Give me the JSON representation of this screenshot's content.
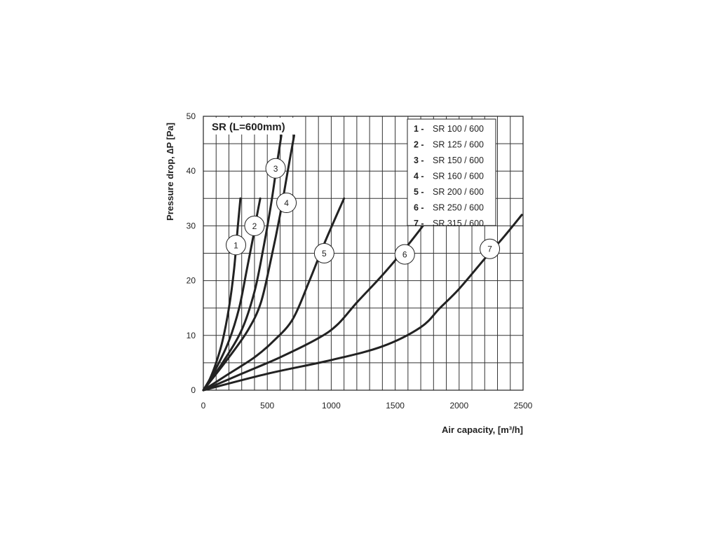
{
  "chart_data": {
    "type": "line",
    "title": "SR (L=600mm)",
    "xlabel": "Air capacity, [m³/h]",
    "ylabel": "Pressure drop, ∆P [Pa]",
    "xlim": [
      0,
      2500
    ],
    "ylim": [
      0,
      50
    ],
    "x_ticks": [
      "0",
      "500",
      "1000",
      "1500",
      "2000",
      "2500"
    ],
    "y_ticks": [
      "0",
      "10",
      "20",
      "30",
      "40",
      "50"
    ],
    "grid": true,
    "legend_position": "top-right",
    "legend": [
      {
        "num": "1 -",
        "text": "SR 100 / 600"
      },
      {
        "num": "2 -",
        "text": "SR 125 / 600"
      },
      {
        "num": "3 -",
        "text": "SR 150 / 600"
      },
      {
        "num": "4 -",
        "text": "SR 160 / 600"
      },
      {
        "num": "5 -",
        "text": "SR 200 / 600"
      },
      {
        "num": "6 -",
        "text": "SR 250 / 600"
      },
      {
        "num": "7 -",
        "text": "SR 315 / 600"
      }
    ],
    "series": [
      {
        "label": "1",
        "label_at": [
          255,
          26.5
        ],
        "points": [
          [
            0,
            0
          ],
          [
            50,
            2
          ],
          [
            100,
            5
          ],
          [
            150,
            9
          ],
          [
            200,
            15
          ],
          [
            240,
            22
          ],
          [
            270,
            30
          ],
          [
            290,
            35
          ]
        ]
      },
      {
        "label": "2",
        "label_at": [
          400,
          30
        ],
        "points": [
          [
            0,
            0
          ],
          [
            100,
            4
          ],
          [
            200,
            9
          ],
          [
            280,
            15
          ],
          [
            340,
            22
          ],
          [
            390,
            28
          ],
          [
            420,
            32
          ],
          [
            445,
            35
          ]
        ]
      },
      {
        "label": "3",
        "label_at": [
          565,
          40.5
        ],
        "points": [
          [
            0,
            0
          ],
          [
            150,
            5
          ],
          [
            300,
            11
          ],
          [
            400,
            18
          ],
          [
            470,
            26
          ],
          [
            530,
            34
          ],
          [
            580,
            42
          ],
          [
            610,
            46.5
          ]
        ]
      },
      {
        "label": "4",
        "label_at": [
          650,
          34.2
        ],
        "points": [
          [
            0,
            0
          ],
          [
            200,
            6
          ],
          [
            350,
            11
          ],
          [
            450,
            16
          ],
          [
            530,
            24
          ],
          [
            600,
            32
          ],
          [
            660,
            40
          ],
          [
            710,
            46.5
          ]
        ]
      },
      {
        "label": "5",
        "label_at": [
          945,
          25
        ],
        "points": [
          [
            0,
            0
          ],
          [
            200,
            3
          ],
          [
            400,
            6
          ],
          [
            550,
            9
          ],
          [
            700,
            13
          ],
          [
            830,
            20
          ],
          [
            950,
            27
          ],
          [
            1100,
            35
          ]
        ]
      },
      {
        "label": "6",
        "label_at": [
          1575,
          24.8
        ],
        "points": [
          [
            0,
            0
          ],
          [
            300,
            3
          ],
          [
            600,
            6
          ],
          [
            900,
            9.5
          ],
          [
            1050,
            12
          ],
          [
            1200,
            16
          ],
          [
            1400,
            21
          ],
          [
            1600,
            26.5
          ],
          [
            1750,
            31
          ]
        ]
      },
      {
        "label": "7",
        "label_at": [
          2240,
          25.8
        ],
        "points": [
          [
            0,
            0
          ],
          [
            500,
            3
          ],
          [
            1000,
            5.5
          ],
          [
            1400,
            8
          ],
          [
            1700,
            11.5
          ],
          [
            1850,
            15
          ],
          [
            2000,
            18.5
          ],
          [
            2200,
            24
          ],
          [
            2350,
            28
          ],
          [
            2490,
            32
          ]
        ]
      }
    ]
  }
}
